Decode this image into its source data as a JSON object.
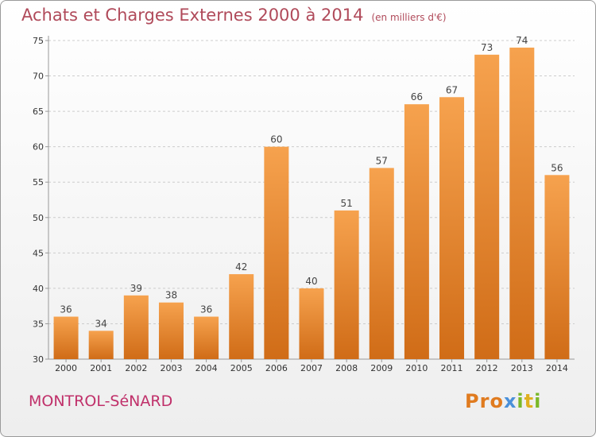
{
  "header": {
    "title": "Achats et Charges Externes 2000 à 2014",
    "unit": "(en milliers d'€)"
  },
  "footer": {
    "commune": "MONTROL-SéNARD",
    "logo_text": "Proxiti"
  },
  "colors": {
    "title": "#b04a5a",
    "bar_light": "#f6a24e",
    "bar_dark": "#d06c17",
    "commune": "#c0306a"
  },
  "chart_data": {
    "type": "bar",
    "title": "Achats et Charges Externes 2000 à 2014",
    "subtitle": "(en milliers d'€)",
    "categories": [
      "2000",
      "2001",
      "2002",
      "2003",
      "2004",
      "2005",
      "2006",
      "2007",
      "2008",
      "2009",
      "2010",
      "2011",
      "2012",
      "2013",
      "2014"
    ],
    "values": [
      36,
      34,
      39,
      38,
      36,
      42,
      60,
      40,
      51,
      57,
      66,
      67,
      73,
      74,
      56
    ],
    "ylim": [
      30,
      75
    ],
    "yticks": [
      30,
      35,
      40,
      45,
      50,
      55,
      60,
      65,
      70,
      75
    ],
    "grid": true,
    "data_labels": true
  }
}
